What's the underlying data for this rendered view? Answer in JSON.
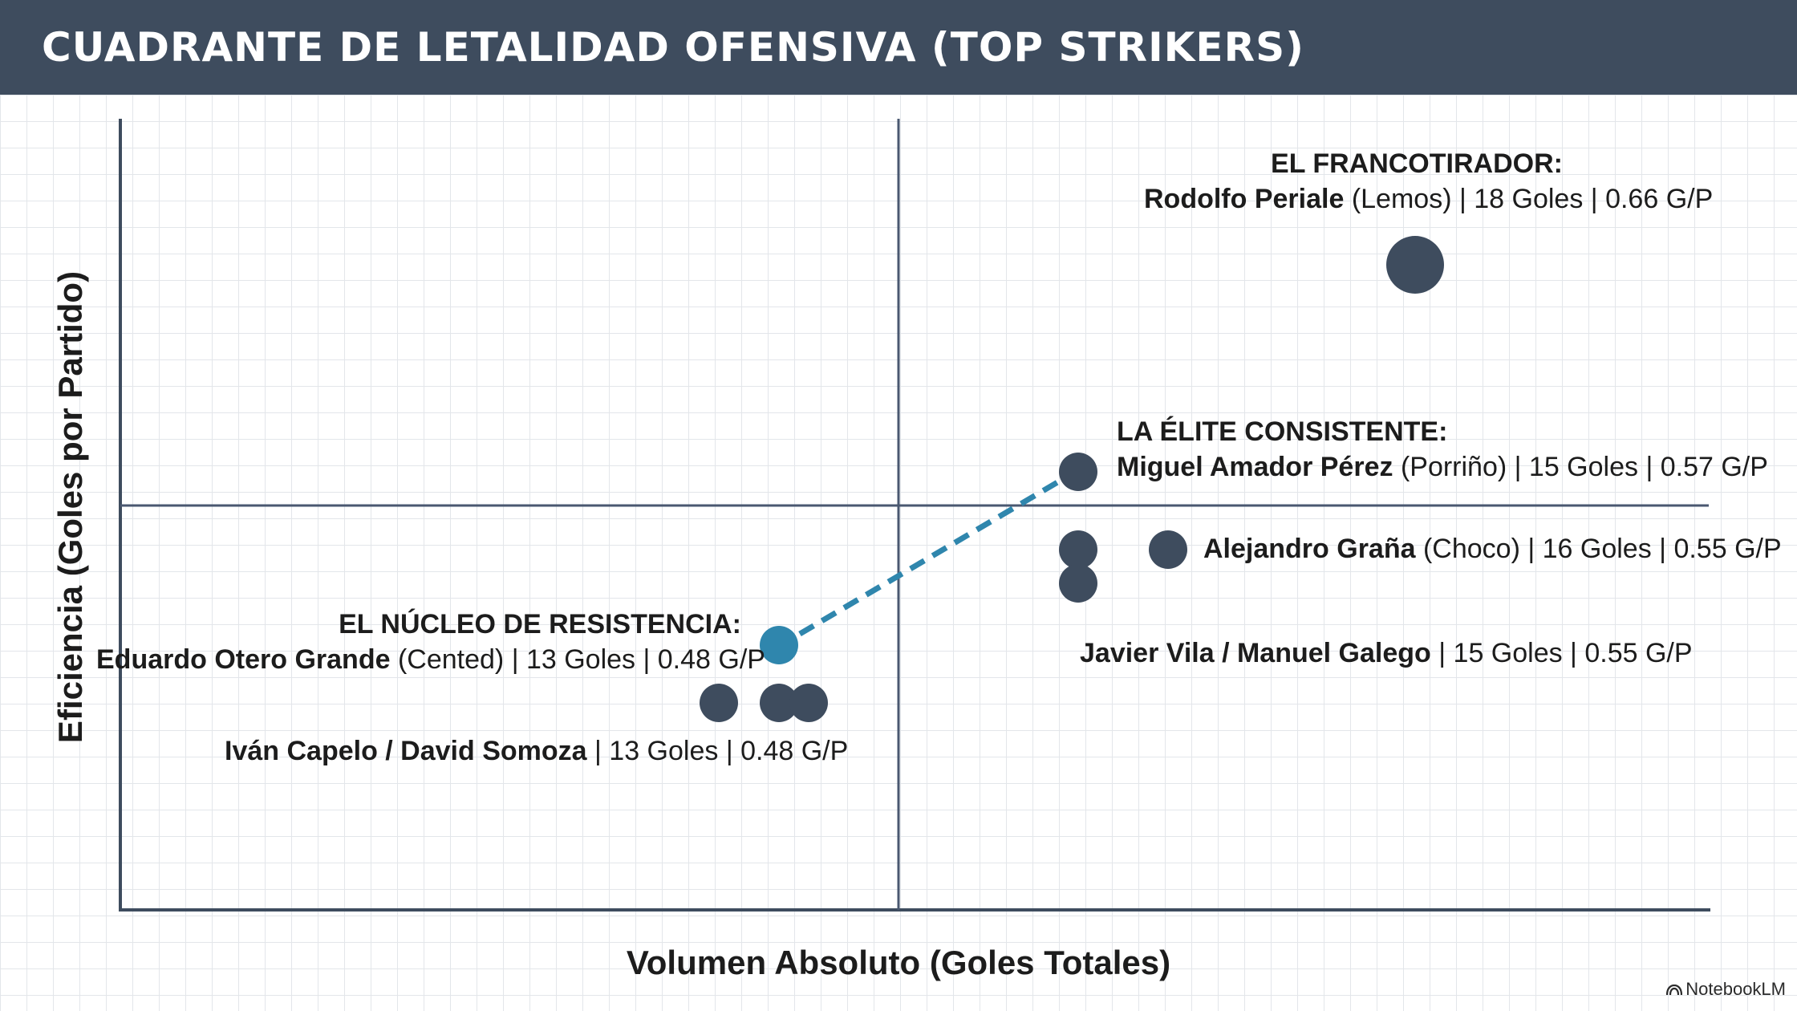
{
  "header": {
    "title": "CUADRANTE DE LETALIDAD OFENSIVA (TOP STRIKERS)"
  },
  "colors": {
    "header_bg": "#3e4c5e",
    "point": "#3e4c5e",
    "highlight": "#2f86ad"
  },
  "chart_data": {
    "type": "scatter",
    "title": "CUADRANTE DE LETALIDAD OFENSIVA (TOP STRIKERS)",
    "xlabel": "Volumen Absoluto (Goles Totales)",
    "ylabel": "Eficiencia (Goles por Partido)",
    "grid": true,
    "points": [
      {
        "name": "Rodolfo Periale",
        "club": "Lemos",
        "x": 18,
        "y": 0.66,
        "size": "large"
      },
      {
        "name": "Alejandro Graña",
        "club": "Choco",
        "x": 16,
        "y": 0.55
      },
      {
        "name": "Miguel Amador Pérez",
        "club": "Porriño",
        "x": 15,
        "y": 0.57
      },
      {
        "name": "Javier Vila",
        "x": 15,
        "y": 0.55
      },
      {
        "name": "Manuel Galego",
        "x": 15,
        "y": 0.55
      },
      {
        "name": "Eduardo Otero Grande",
        "club": "Cented",
        "x": 13,
        "y": 0.48,
        "highlight": true
      },
      {
        "name": "Iván Capelo",
        "x": 13,
        "y": 0.48
      },
      {
        "name": "David Somoza",
        "x": 13,
        "y": 0.48
      }
    ],
    "connector": {
      "from": "Eduardo Otero Grande",
      "to": "Miguel Amador Pérez",
      "style": "dashed"
    },
    "annotations": [
      {
        "heading": "EL FRANCOTIRADOR:",
        "name": "Rodolfo Periale",
        "club": "(Lemos)",
        "stats": "| 18 Goles | 0.66 G/P"
      },
      {
        "heading": "LA ÉLITE CONSISTENTE:",
        "name": "Miguel Amador Pérez",
        "club": "(Porriño)",
        "stats": "| 15 Goles | 0.57 G/P"
      },
      {
        "heading": "",
        "name": "Alejandro Graña",
        "club": "(Choco)",
        "stats": "| 16 Goles | 0.55 G/P"
      },
      {
        "heading": "",
        "name": "Javier Vila / Manuel Galego",
        "club": "",
        "stats": "| 15 Goles | 0.55 G/P"
      },
      {
        "heading": "EL NÚCLEO DE RESISTENCIA:",
        "name": "Eduardo Otero Grande",
        "club": "(Cented)",
        "stats": "| 13 Goles | 0.48 G/P"
      },
      {
        "heading": "",
        "name": "Iván Capelo / David Somoza",
        "club": "",
        "stats": "| 13 Goles | 0.48 G/P"
      }
    ]
  },
  "watermark": {
    "label": "NotebookLM",
    "icon": "notebooklm-logo-icon"
  }
}
